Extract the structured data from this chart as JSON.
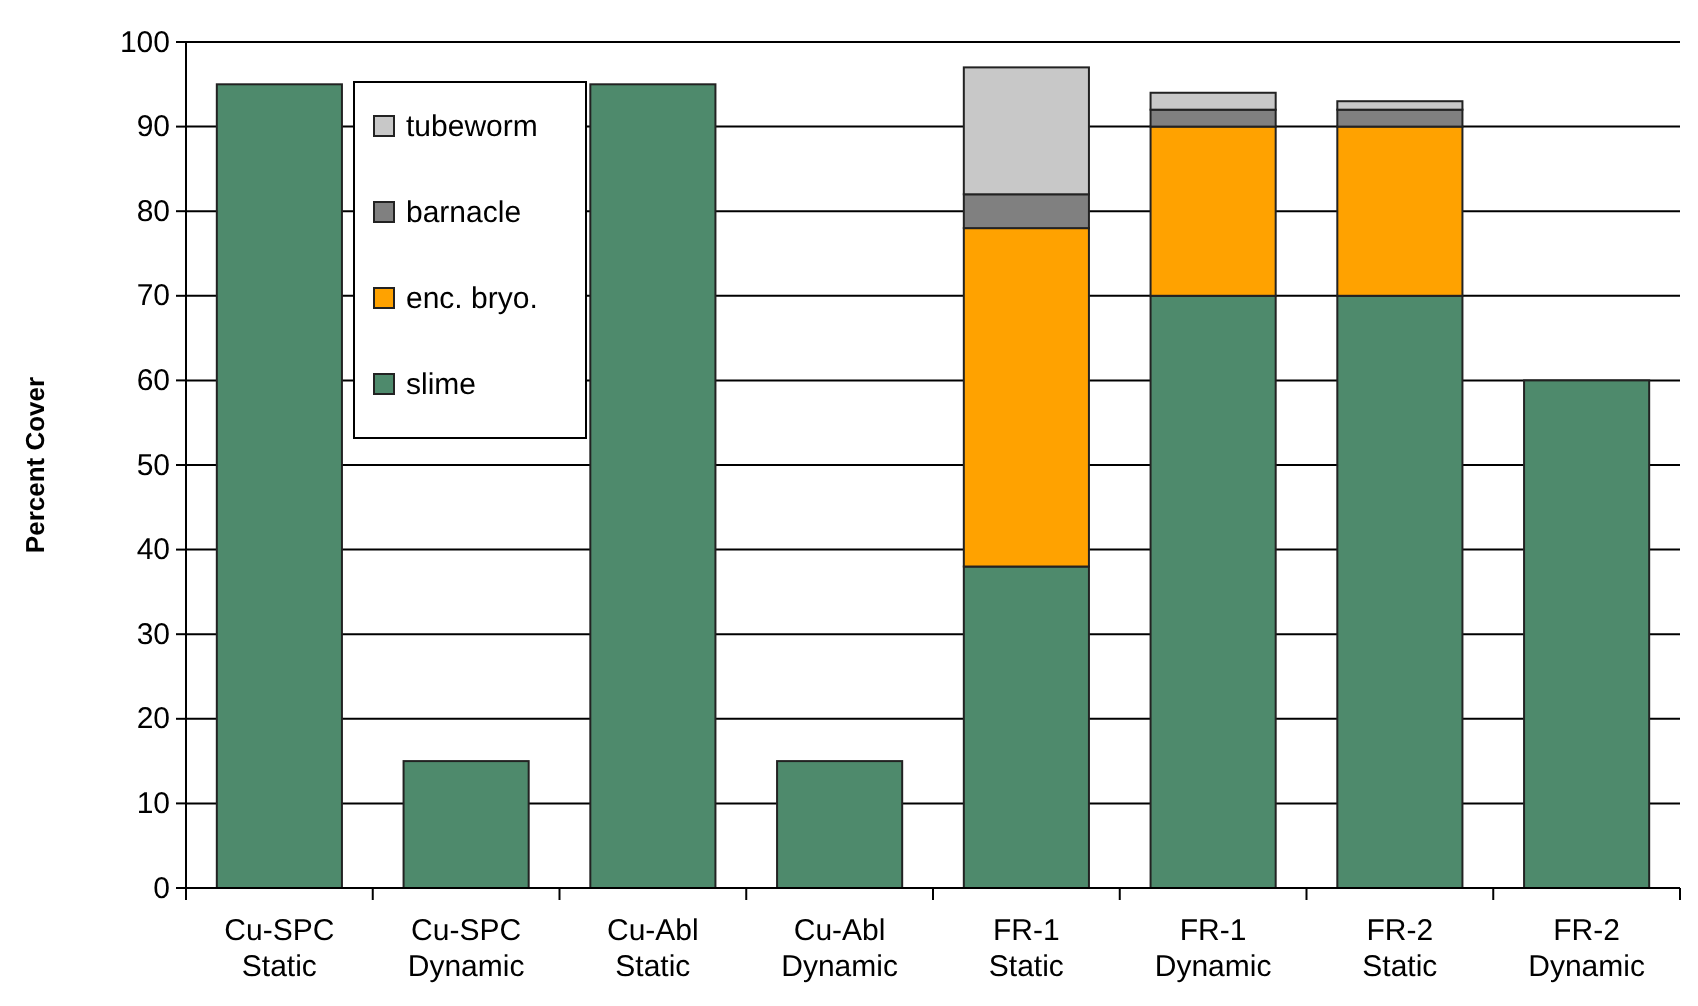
{
  "chart_data": {
    "type": "bar",
    "stacked": true,
    "ylabel": "Percent Cover",
    "categories": [
      "Cu-SPC\nStatic",
      "Cu-SPC\nDynamic",
      "Cu-Abl\nStatic",
      "Cu-Abl\nDynamic",
      "FR-1\nStatic",
      "FR-1\nDynamic",
      "FR-2\nStatic",
      "FR-2\nDynamic"
    ],
    "series": [
      {
        "name": "slime",
        "color": "#4e8a6c",
        "values": [
          95,
          15,
          95,
          15,
          38,
          70,
          70,
          60
        ]
      },
      {
        "name": "enc. bryo.",
        "color": "#ffa200",
        "values": [
          null,
          null,
          null,
          null,
          40,
          20,
          20,
          null
        ]
      },
      {
        "name": "barnacle",
        "color": "#808080",
        "values": [
          null,
          null,
          null,
          null,
          4,
          2,
          2,
          null
        ]
      },
      {
        "name": "tubeworm",
        "color": "#c8c8c8",
        "values": [
          null,
          null,
          null,
          null,
          15,
          2,
          1,
          null
        ]
      }
    ],
    "ylim": [
      0,
      100
    ],
    "yticks": [
      0,
      10,
      20,
      30,
      40,
      50,
      60,
      70,
      80,
      90,
      100
    ],
    "grid": "y",
    "legend": "top left"
  }
}
